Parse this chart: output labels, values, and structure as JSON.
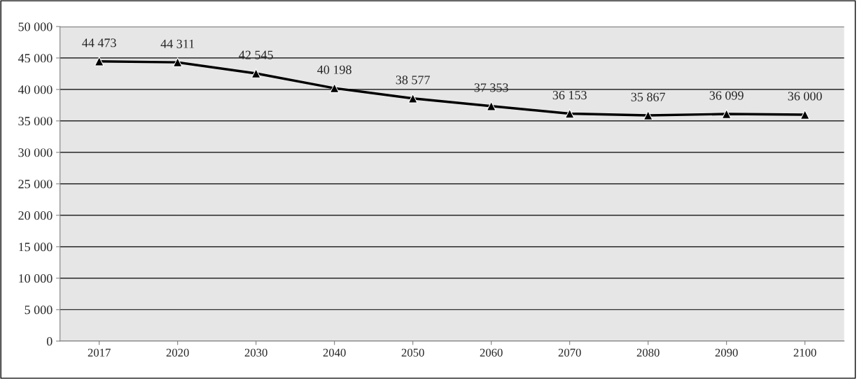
{
  "chart_data": {
    "type": "line",
    "categories": [
      "2017",
      "2020",
      "2030",
      "2040",
      "2050",
      "2060",
      "2070",
      "2080",
      "2090",
      "2100"
    ],
    "series": [
      {
        "color": "#000000",
        "values": [
          44473,
          44311,
          42545,
          40198,
          38577,
          37353,
          36153,
          35867,
          36099,
          36000
        ],
        "value_labels": [
          "44 473",
          "44 311",
          "42 545",
          "40 198",
          "38 577",
          "37 353",
          "36 153",
          "35 867",
          "36 099",
          "36 000"
        ]
      }
    ],
    "ylim": [
      0,
      50000
    ],
    "yticks": [
      {
        "value": 0,
        "label": "0"
      },
      {
        "value": 5000,
        "label": "5 000"
      },
      {
        "value": 10000,
        "label": "10 000"
      },
      {
        "value": 15000,
        "label": "15 000"
      },
      {
        "value": 20000,
        "label": "20 000"
      },
      {
        "value": 25000,
        "label": "25 000"
      },
      {
        "value": 30000,
        "label": "30 000"
      },
      {
        "value": 35000,
        "label": "35 000"
      },
      {
        "value": 40000,
        "label": "40 000"
      },
      {
        "value": 45000,
        "label": "45 000"
      },
      {
        "value": 50000,
        "label": "50 000"
      }
    ],
    "grid": "y",
    "marker": "triangle",
    "line_style": "solid",
    "legend": false
  }
}
